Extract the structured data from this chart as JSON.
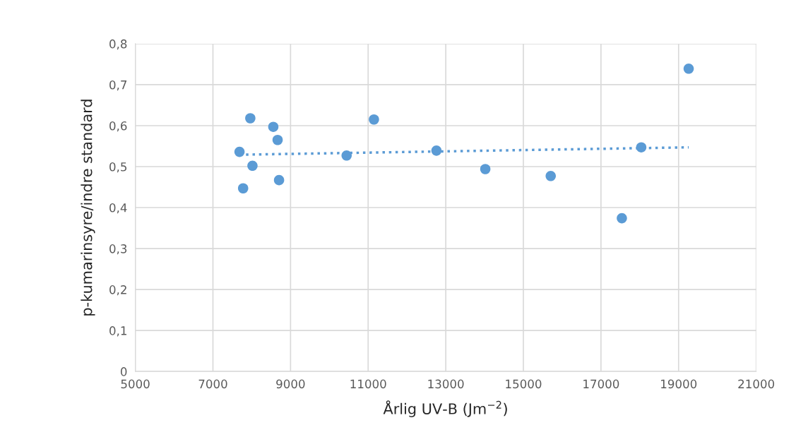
{
  "chart_data": {
    "type": "scatter",
    "xlabel": "Årlig UV-B (Jm$^{−2}$)",
    "ylabel": "p-kumarinsyre/indre standard",
    "xlim": [
      5000,
      21000
    ],
    "xticks": [
      5000,
      7000,
      9000,
      11000,
      13000,
      15000,
      17000,
      19000,
      21000
    ],
    "ylim": [
      0,
      0.8
    ],
    "yticks": [
      {
        "value": 0,
        "label": "0"
      },
      {
        "value": 0.1,
        "label": "0,1"
      },
      {
        "value": 0.2,
        "label": "0,2"
      },
      {
        "value": 0.3,
        "label": "0,3"
      },
      {
        "value": 0.4,
        "label": "0,4"
      },
      {
        "value": 0.5,
        "label": "0,5"
      },
      {
        "value": 0.6,
        "label": "0,6"
      },
      {
        "value": 0.7,
        "label": "0,7"
      },
      {
        "value": 0.8,
        "label": "0,8"
      }
    ],
    "grid": true,
    "series": [
      {
        "marker": "circle",
        "color": "#5b9bd5",
        "x": [
          7685,
          7778,
          7963,
          8019,
          8556,
          8667,
          8704,
          10445,
          11149,
          12760,
          14019,
          15705,
          17538,
          18038,
          19260
        ],
        "values": [
          0.536,
          0.447,
          0.618,
          0.502,
          0.597,
          0.565,
          0.467,
          0.527,
          0.615,
          0.539,
          0.494,
          0.477,
          0.374,
          0.547,
          0.739
        ]
      },
      {
        "type": "line",
        "marker": "none",
        "color": "#5b9bd5",
        "line_style": "dotted",
        "x": [
          7685,
          19260
        ],
        "values": [
          0.529,
          0.547
        ]
      }
    ]
  }
}
